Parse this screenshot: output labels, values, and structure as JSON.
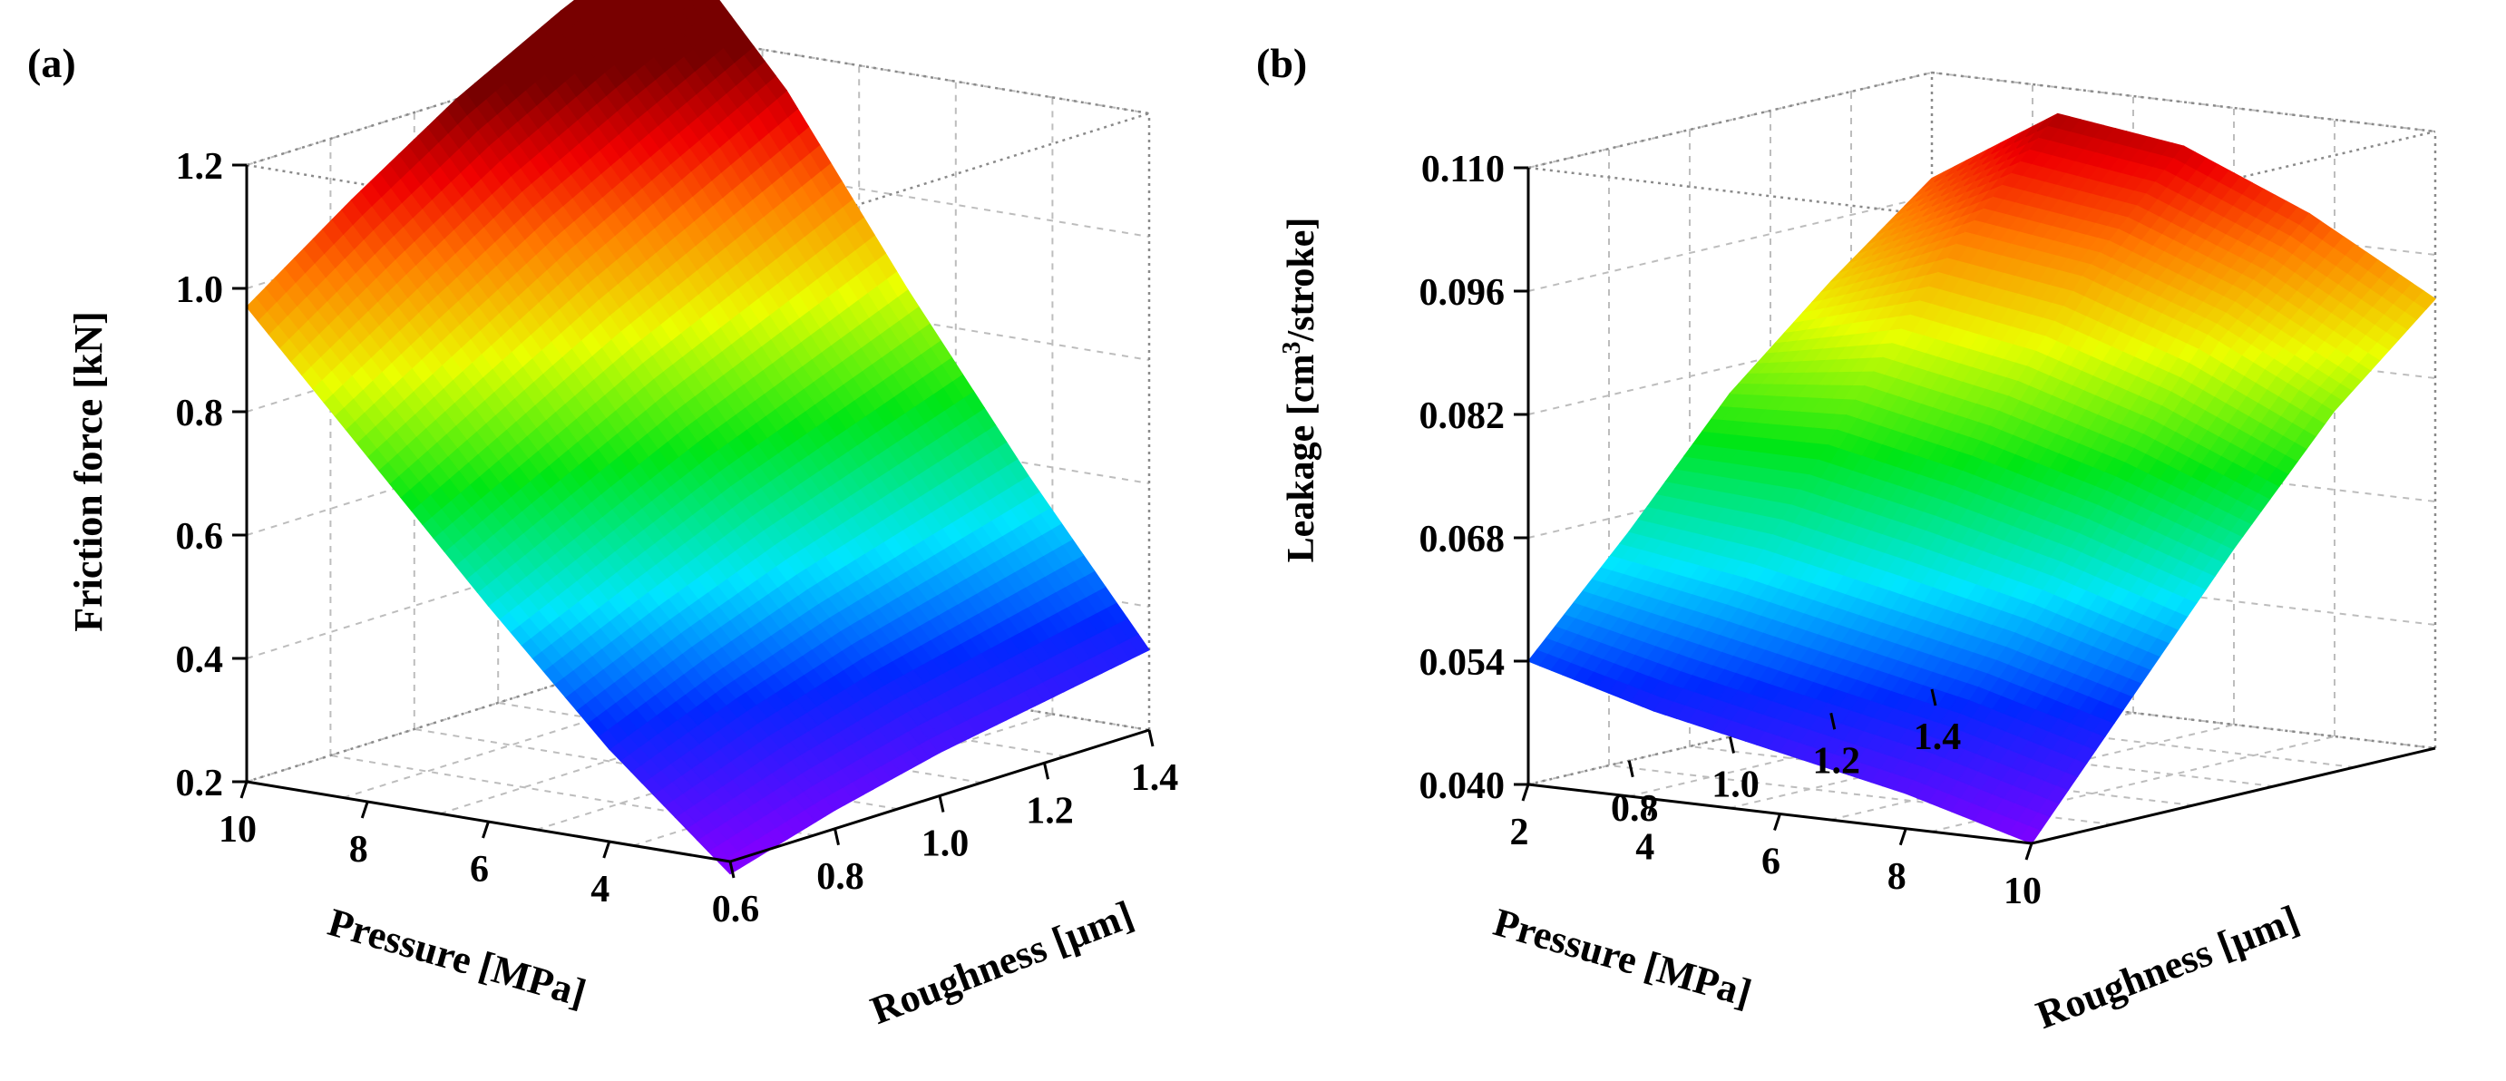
{
  "chart_data": [
    {
      "panel": "(a)",
      "type": "surface3d",
      "zlabel": "Friction force [kN]",
      "xlabel": "Pressure [MPa]",
      "ylabel": "Roughness [µm]",
      "z_ticks": [
        "0.2",
        "0.4",
        "0.6",
        "0.8",
        "1.0",
        "1.2"
      ],
      "x_ticks": [
        "10",
        "8",
        "6",
        "4"
      ],
      "y_ticks": [
        "0.6",
        "0.8",
        "1.0",
        "1.2",
        "1.4"
      ],
      "zlim": [
        0.2,
        1.2
      ],
      "xlim": [
        2,
        10
      ],
      "ylim": [
        0.6,
        1.4
      ],
      "colormap": "rainbow",
      "x": [
        2,
        4,
        6,
        8,
        10
      ],
      "y": [
        0.6,
        0.8,
        1.0,
        1.2,
        1.4
      ],
      "z": [
        [
          0.18,
          0.23,
          0.27,
          0.3,
          0.33
        ],
        [
          0.35,
          0.42,
          0.48,
          0.53,
          0.58
        ],
        [
          0.55,
          0.63,
          0.71,
          0.78,
          0.85
        ],
        [
          0.76,
          0.86,
          0.96,
          1.05,
          1.14
        ],
        [
          0.97,
          1.09,
          1.2,
          1.29,
          1.37
        ]
      ]
    },
    {
      "panel": "(b)",
      "type": "surface3d",
      "zlabel_main": "Leakage [cm",
      "zlabel_sup": "3",
      "zlabel_tail": "/stroke]",
      "xlabel": "Pressure [MPa]",
      "ylabel": "Roughness [µm]",
      "z_ticks": [
        "0.040",
        "0.054",
        "0.068",
        "0.082",
        "0.096",
        "0.110"
      ],
      "x_ticks": [
        "2",
        "4",
        "6",
        "8",
        "10"
      ],
      "y_ticks": [
        "0.8",
        "1.0",
        "1.2",
        "1.4"
      ],
      "zlim": [
        0.04,
        0.11
      ],
      "xlim": [
        2,
        10
      ],
      "ylim": [
        0.6,
        1.4
      ],
      "colormap": "rainbow",
      "x": [
        2,
        4,
        6,
        8,
        10
      ],
      "y": [
        0.6,
        0.8,
        1.0,
        1.2,
        1.4
      ],
      "z": [
        [
          0.054,
          0.066,
          0.079,
          0.089,
          0.098
        ],
        [
          0.05,
          0.064,
          0.08,
          0.095,
          0.107
        ],
        [
          0.047,
          0.061,
          0.077,
          0.093,
          0.105
        ],
        [
          0.044,
          0.058,
          0.073,
          0.088,
          0.099
        ],
        [
          0.04,
          0.054,
          0.068,
          0.081,
          0.091
        ]
      ]
    }
  ]
}
